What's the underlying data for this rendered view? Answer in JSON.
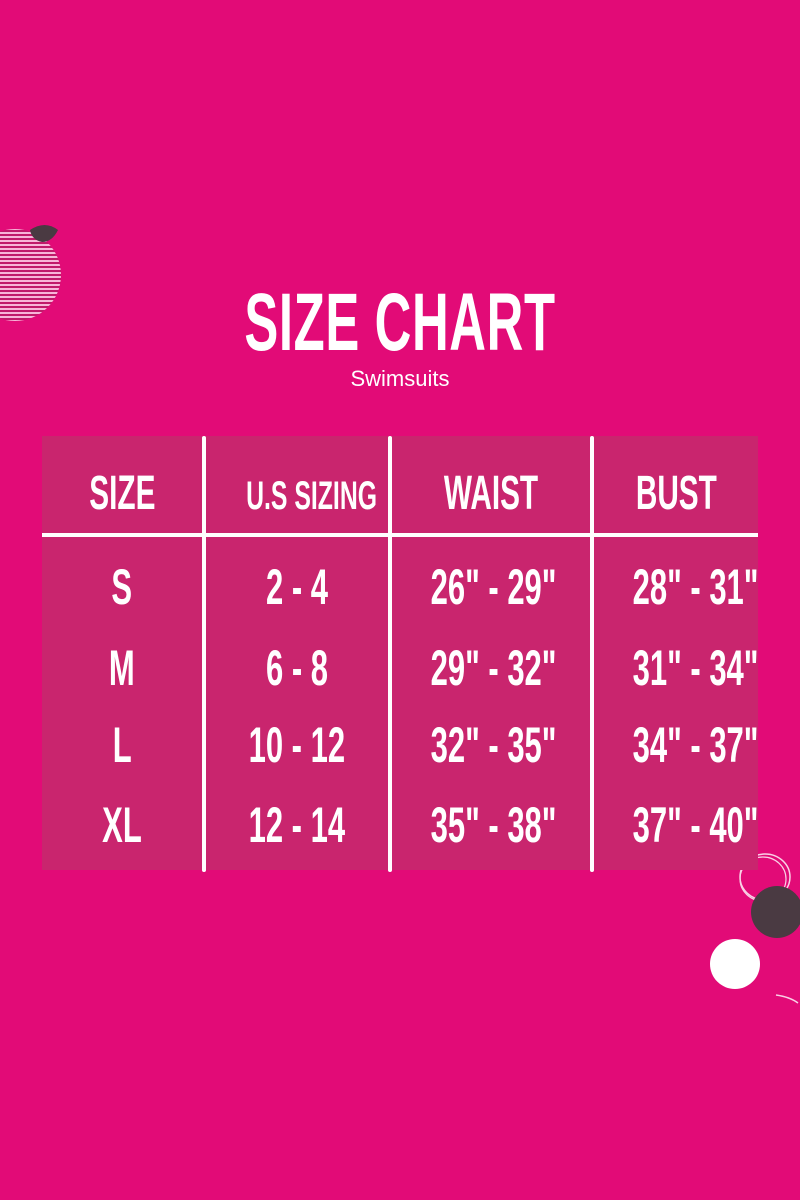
{
  "title": "SIZE CHART",
  "subtitle": "Swimsuits",
  "colors": {
    "background": "#e20b77",
    "table": "#c9256e",
    "text": "#ffffff",
    "decor_dark": "#4a3a42"
  },
  "table": {
    "headers": [
      "SIZE",
      "U.S SIZING",
      "WAIST",
      "BUST"
    ],
    "rows": [
      [
        "S",
        "2 - 4",
        "26\" - 29\"",
        "28\" - 31\""
      ],
      [
        "M",
        "6 - 8",
        "29\" - 32\"",
        "31\" - 34\""
      ],
      [
        "L",
        "10 - 12",
        "32\" - 35\"",
        "34\" - 37\""
      ],
      [
        "XL",
        "12 - 14",
        "35\" - 38\"",
        "37\" - 40\""
      ]
    ]
  }
}
